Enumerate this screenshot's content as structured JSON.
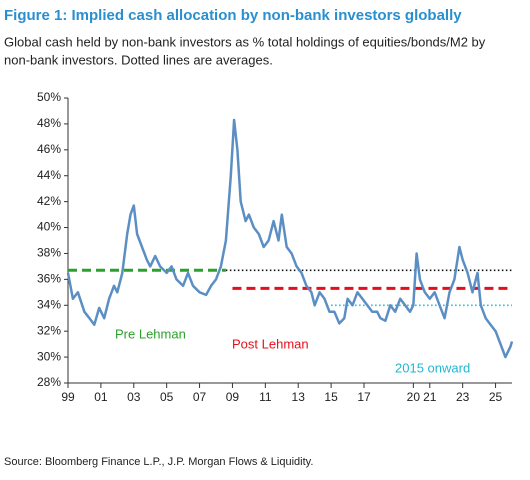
{
  "chart_data": {
    "type": "line",
    "title": "Figure 1: Implied cash allocation by non-bank investors globally",
    "subtitle": [
      "Global cash held by non-bank investors as % total holdings of equities/bonds/M2 by",
      "non-bank investors. Dotted lines are averages."
    ],
    "source": "Source: Bloomberg Finance L.P., J.P. Morgan Flows & Liquidity.",
    "x": [
      1999.0,
      1999.3,
      1999.6,
      2000.0,
      2000.3,
      2000.6,
      2000.9,
      2001.2,
      2001.5,
      2001.8,
      2002.0,
      2002.3,
      2002.6,
      2002.8,
      2003.0,
      2003.2,
      2003.5,
      2003.8,
      2004.0,
      2004.3,
      2004.6,
      2005.0,
      2005.3,
      2005.6,
      2006.0,
      2006.3,
      2006.6,
      2007.0,
      2007.4,
      2007.7,
      2008.0,
      2008.3,
      2008.6,
      2008.9,
      2009.1,
      2009.3,
      2009.5,
      2009.8,
      2010.0,
      2010.3,
      2010.6,
      2010.9,
      2011.2,
      2011.5,
      2011.8,
      2012.0,
      2012.3,
      2012.6,
      2012.9,
      2013.2,
      2013.5,
      2013.8,
      2014.0,
      2014.3,
      2014.6,
      2014.9,
      2015.2,
      2015.5,
      2015.8,
      2016.0,
      2016.3,
      2016.6,
      2016.9,
      2017.2,
      2017.5,
      2017.8,
      2018.0,
      2018.3,
      2018.6,
      2018.9,
      2019.2,
      2019.5,
      2019.8,
      2020.0,
      2020.2,
      2020.4,
      2020.7,
      2021.0,
      2021.3,
      2021.6,
      2021.9,
      2022.2,
      2022.5,
      2022.8,
      2023.0,
      2023.3,
      2023.6,
      2023.9,
      2024.1,
      2024.4,
      2024.7,
      2025.0,
      2025.3,
      2025.6,
      2025.9,
      2026.0
    ],
    "series": [
      {
        "color": "#5b8fc4",
        "values": [
          36.5,
          34.5,
          35,
          33.5,
          33,
          32.5,
          33.8,
          33,
          34.5,
          35.5,
          35,
          36.5,
          39.5,
          41,
          41.7,
          39.5,
          38.5,
          37.5,
          37,
          37.8,
          37,
          36.5,
          37,
          36,
          35.5,
          36.5,
          35.5,
          35,
          34.8,
          35.5,
          36,
          37,
          39,
          44,
          48.3,
          46,
          42,
          40.5,
          41,
          40,
          39.5,
          38.5,
          39,
          40.5,
          39,
          41,
          38.5,
          38,
          37,
          36.5,
          35.5,
          35,
          34,
          35,
          34.5,
          33.5,
          33.5,
          32.6,
          33,
          34.5,
          34,
          35,
          34.5,
          34,
          33.5,
          33.5,
          33,
          32.8,
          34,
          33.5,
          34.5,
          34,
          33.5,
          34,
          38,
          36,
          35,
          34.5,
          35,
          34,
          33,
          35,
          36,
          38.5,
          37.5,
          36.5,
          35,
          36.5,
          34,
          33,
          32.5,
          32,
          31,
          30,
          30.8,
          31.2
        ]
      }
    ],
    "averages": [
      {
        "value": 36.7,
        "x": [
          2008.6,
          2026.0
        ],
        "color": "#111111",
        "style": "dotted"
      },
      {
        "name": "Pre Lehman",
        "value": 36.7,
        "x": [
          1999.0,
          2008.6
        ],
        "color": "#2ca02c",
        "style": "dashed"
      },
      {
        "name": "Post Lehman",
        "value": 35.3,
        "x": [
          2009.0,
          2026.0
        ],
        "color": "#e3101c",
        "style": "dashed"
      },
      {
        "name": "2015 onward",
        "value": 34.0,
        "x": [
          2015.0,
          2026.0
        ],
        "color": "#1fb8d4",
        "style": "dotted"
      }
    ],
    "xlim": [
      1999,
      2026
    ],
    "xticks": [
      {
        "value": 1999,
        "label": "99"
      },
      {
        "value": 2001,
        "label": "01"
      },
      {
        "value": 2003,
        "label": "03"
      },
      {
        "value": 2005,
        "label": "05"
      },
      {
        "value": 2007,
        "label": "07"
      },
      {
        "value": 2009,
        "label": "09"
      },
      {
        "value": 2011,
        "label": "11"
      },
      {
        "value": 2013,
        "label": "13"
      },
      {
        "value": 2015,
        "label": "15"
      },
      {
        "value": 2017,
        "label": "17"
      },
      {
        "value": 2020,
        "label": "20"
      },
      {
        "value": 2021,
        "label": "21"
      },
      {
        "value": 2023,
        "label": "23"
      },
      {
        "value": 2025,
        "label": "25"
      }
    ],
    "ylim": [
      28,
      50
    ],
    "yticks": [
      {
        "value": 28,
        "label": "28%"
      },
      {
        "value": 30,
        "label": "30%"
      },
      {
        "value": 32,
        "label": "32%"
      },
      {
        "value": 34,
        "label": "34%"
      },
      {
        "value": 36,
        "label": "36%"
      },
      {
        "value": 38,
        "label": "38%"
      },
      {
        "value": 40,
        "label": "40%"
      },
      {
        "value": 42,
        "label": "42%"
      },
      {
        "value": 44,
        "label": "44%"
      },
      {
        "value": 46,
        "label": "46%"
      },
      {
        "value": 48,
        "label": "48%"
      },
      {
        "value": 50,
        "label": "50%"
      }
    ]
  }
}
